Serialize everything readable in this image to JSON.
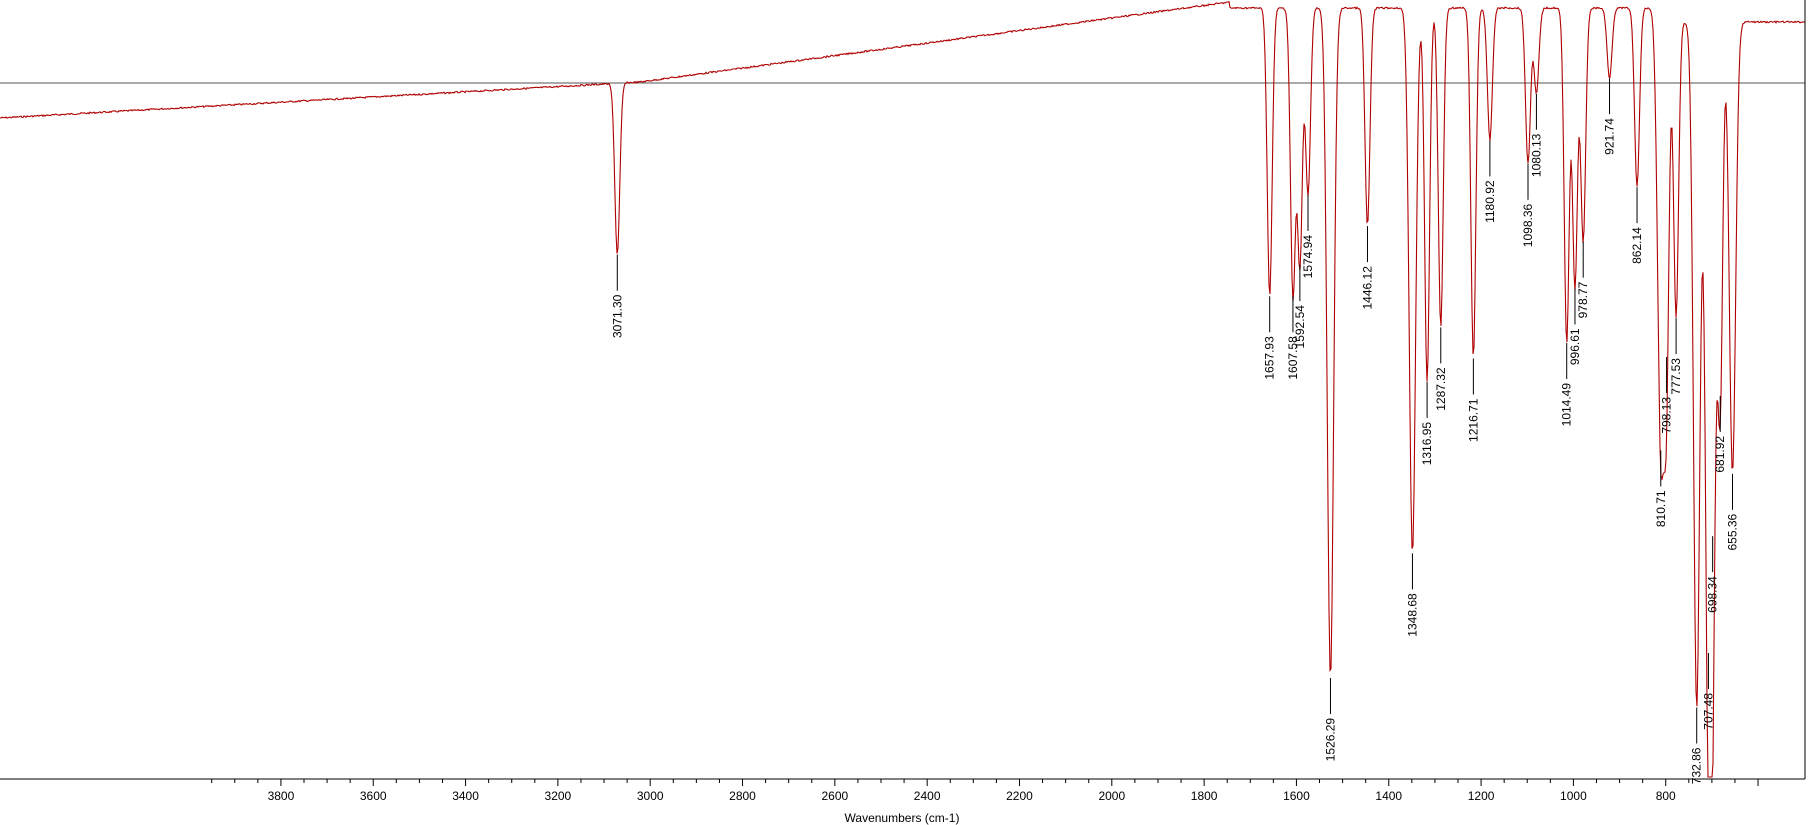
{
  "chart_data": {
    "type": "line",
    "title": "",
    "xlabel": "Wavenumbers (cm-1)",
    "ylabel": "",
    "xlim": [
      4000,
      550
    ],
    "x_reversed": true,
    "x_ticks": [
      "3800",
      "3600",
      "3400",
      "3200",
      "3000",
      "2800",
      "2600",
      "2400",
      "2200",
      "2000",
      "1800",
      "1600",
      "1400",
      "1200",
      "1000",
      "800"
    ],
    "reference_line": true,
    "colors": {
      "spectrum": "#b00000",
      "reference": "#555555",
      "axis": "#000000"
    },
    "peaks": [
      {
        "label": "3071.30",
        "x": 3071.3,
        "depth": 0.22
      },
      {
        "label": "1657.93",
        "x": 1657.93,
        "depth": 0.37
      },
      {
        "label": "1607.58",
        "x": 1607.58,
        "depth": 0.37
      },
      {
        "label": "1592.54",
        "x": 1592.54,
        "depth": 0.33
      },
      {
        "label": "1574.94",
        "x": 1574.94,
        "depth": 0.24
      },
      {
        "label": "1526.29",
        "x": 1526.29,
        "depth": 0.86
      },
      {
        "label": "1446.12",
        "x": 1446.12,
        "depth": 0.28
      },
      {
        "label": "1348.68",
        "x": 1348.68,
        "depth": 0.7
      },
      {
        "label": "1316.95",
        "x": 1316.95,
        "depth": 0.48
      },
      {
        "label": "1287.32",
        "x": 1287.32,
        "depth": 0.41
      },
      {
        "label": "1216.71",
        "x": 1216.71,
        "depth": 0.45
      },
      {
        "label": "1180.92",
        "x": 1180.92,
        "depth": 0.17
      },
      {
        "label": "1098.36",
        "x": 1098.36,
        "depth": 0.2
      },
      {
        "label": "1080.13",
        "x": 1080.13,
        "depth": 0.11
      },
      {
        "label": "1014.49",
        "x": 1014.49,
        "depth": 0.43
      },
      {
        "label": "996.61",
        "x": 996.61,
        "depth": 0.36
      },
      {
        "label": "978.77",
        "x": 978.77,
        "depth": 0.3
      },
      {
        "label": "921.74",
        "x": 921.74,
        "depth": 0.09
      },
      {
        "label": "862.14",
        "x": 862.14,
        "depth": 0.23
      },
      {
        "label": "810.71",
        "x": 810.71,
        "depth": 0.55
      },
      {
        "label": "798.13",
        "x": 798.13,
        "depth": 0.43
      },
      {
        "label": "777.53",
        "x": 777.53,
        "depth": 0.38
      },
      {
        "label": "732.86",
        "x": 732.86,
        "depth": 0.88
      },
      {
        "label": "707.48",
        "x": 707.48,
        "depth": 0.81
      },
      {
        "label": "698.34",
        "x": 698.34,
        "depth": 0.66
      },
      {
        "label": "681.92",
        "x": 681.92,
        "depth": 0.48
      },
      {
        "label": "655.36",
        "x": 655.36,
        "depth": 0.58
      }
    ]
  }
}
